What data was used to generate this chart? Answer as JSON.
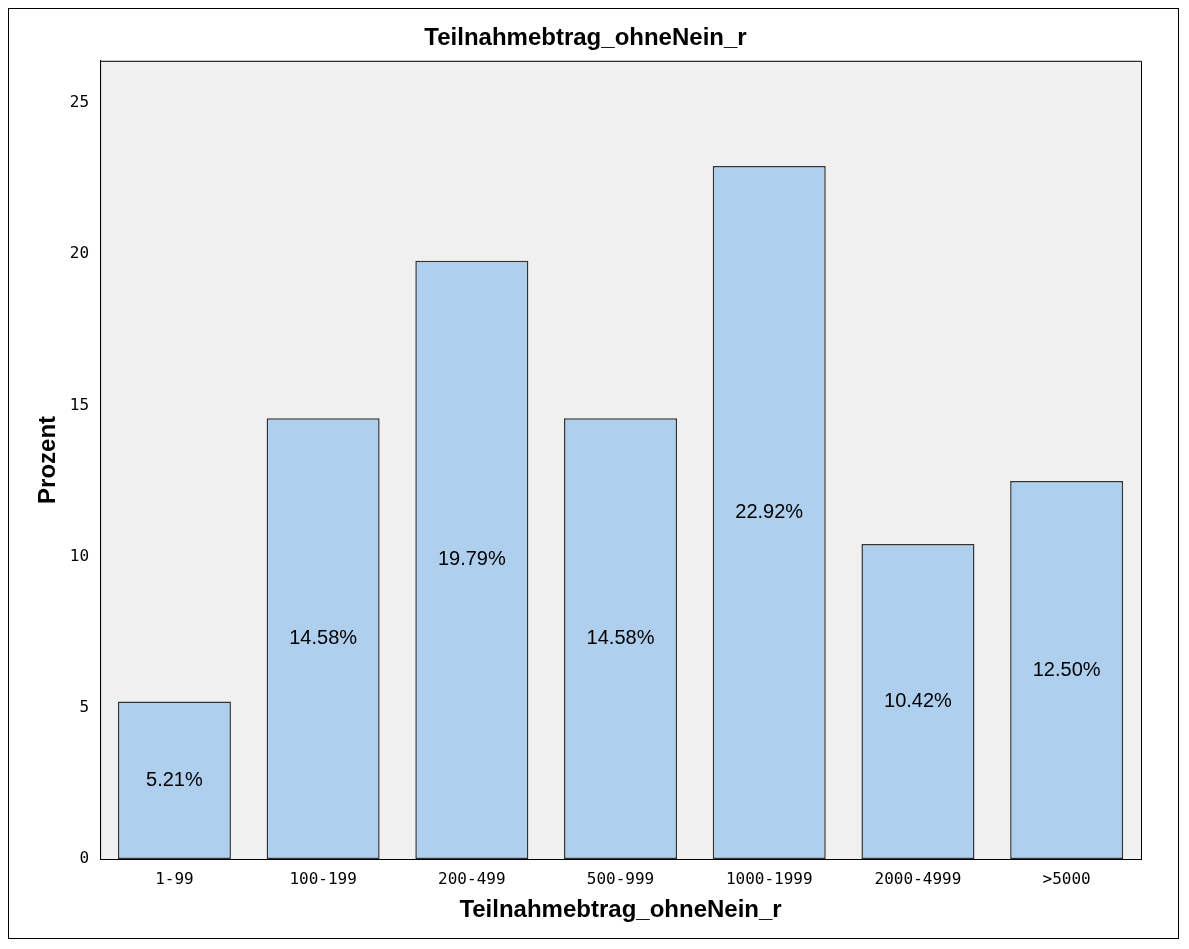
{
  "chart_data": {
    "type": "bar",
    "title": "Teilnahmebtrag_ohneNein_r",
    "xlabel": "Teilnahmebtrag_ohneNein_r",
    "ylabel": "Prozent",
    "categories": [
      "1-99",
      "100-199",
      "200-499",
      "500-999",
      "1000-1999",
      "2000-4999",
      ">5000"
    ],
    "values": [
      5.21,
      14.58,
      19.79,
      14.58,
      22.92,
      10.42,
      12.5
    ],
    "value_labels": [
      "5.21%",
      "14.58%",
      "19.79%",
      "14.58%",
      "22.92%",
      "10.42%",
      "12.50%"
    ],
    "color": "#aecfee",
    "ylim": [
      0,
      26.4
    ],
    "yticks": [
      0,
      5,
      10,
      15,
      20,
      25
    ],
    "grid": false,
    "legend": false
  }
}
